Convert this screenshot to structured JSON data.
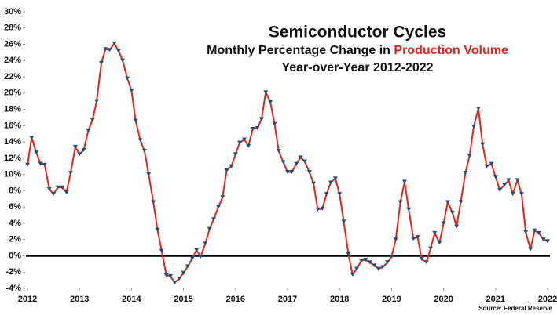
{
  "chart_data": {
    "type": "line",
    "title": "Semiconductor Cycles",
    "subtitle": {
      "text": "Monthly Percentage Change in",
      "highlight": "Production Volume",
      "highlight_color": "#e0261c"
    },
    "subtitle2": "Year-over-Year 2012-2022",
    "source": "Source: Federal Reserve",
    "x": [
      2012,
      2012.08,
      2012.17,
      2012.25,
      2012.33,
      2012.42,
      2012.5,
      2012.58,
      2012.67,
      2012.75,
      2012.83,
      2012.92,
      2013,
      2013.08,
      2013.17,
      2013.25,
      2013.33,
      2013.42,
      2013.5,
      2013.58,
      2013.67,
      2013.75,
      2013.83,
      2013.92,
      2014,
      2014.08,
      2014.17,
      2014.25,
      2014.33,
      2014.42,
      2014.5,
      2014.58,
      2014.67,
      2014.75,
      2014.83,
      2014.92,
      2015,
      2015.08,
      2015.17,
      2015.25,
      2015.33,
      2015.42,
      2015.5,
      2015.58,
      2015.67,
      2015.75,
      2015.83,
      2015.92,
      2016,
      2016.08,
      2016.17,
      2016.25,
      2016.33,
      2016.42,
      2016.5,
      2016.58,
      2016.67,
      2016.75,
      2016.83,
      2016.92,
      2017,
      2017.08,
      2017.17,
      2017.25,
      2017.33,
      2017.42,
      2017.5,
      2017.58,
      2017.67,
      2017.75,
      2017.83,
      2017.92,
      2018,
      2018.08,
      2018.17,
      2018.25,
      2018.33,
      2018.42,
      2018.5,
      2018.58,
      2018.67,
      2018.75,
      2018.83,
      2018.92,
      2019,
      2019.08,
      2019.17,
      2019.25,
      2019.33,
      2019.42,
      2019.5,
      2019.58,
      2019.67,
      2019.75,
      2019.83,
      2019.92,
      2020,
      2020.08,
      2020.17,
      2020.25,
      2020.33,
      2020.42,
      2020.5,
      2020.58,
      2020.67,
      2020.75,
      2020.83,
      2020.92,
      2021,
      2021.08,
      2021.17,
      2021.25,
      2021.33,
      2021.42,
      2021.5,
      2021.58,
      2021.67,
      2021.75,
      2021.83,
      2021.92,
      2022
    ],
    "series": [
      {
        "name": "Production Volume",
        "color": "#e0261c",
        "marker_color": "#1f4e79",
        "values": [
          11.2,
          14.5,
          12.7,
          11.3,
          11.2,
          8.2,
          7.6,
          8.4,
          8.4,
          7.8,
          10.2,
          13.4,
          12.5,
          13.0,
          15.4,
          16.7,
          19.0,
          23.7,
          25.4,
          25.3,
          26.1,
          25.2,
          24.0,
          21.8,
          20.3,
          16.6,
          14.2,
          12.9,
          10.0,
          6.6,
          3.2,
          0.6,
          -2.4,
          -2.5,
          -3.3,
          -2.8,
          -2.1,
          -1.3,
          -0.3,
          0.7,
          -0.1,
          1.5,
          3.3,
          4.5,
          6.0,
          7.2,
          10.5,
          11.0,
          12.5,
          13.9,
          14.3,
          13.5,
          15.6,
          15.7,
          16.8,
          20.1,
          18.9,
          16.2,
          12.9,
          11.5,
          10.3,
          10.3,
          11.3,
          12.1,
          11.6,
          10.3,
          8.9,
          5.7,
          5.8,
          7.6,
          9.0,
          9.5,
          7.6,
          4.2,
          0.2,
          -2.3,
          -1.6,
          -0.6,
          -0.5,
          -0.8,
          -1.2,
          -1.6,
          -1.4,
          -0.8,
          -0.1,
          2.0,
          6.6,
          9.1,
          5.7,
          2.1,
          2.3,
          -0.4,
          -0.8,
          0.9,
          2.8,
          1.6,
          4.0,
          6.6,
          5.3,
          3.6,
          6.6,
          10.2,
          12.3,
          15.9,
          18.1,
          13.7,
          11.0,
          11.3,
          9.7,
          8.1,
          8.7,
          9.3,
          7.6,
          9.3,
          7.6,
          2.9,
          0.8,
          3.1,
          2.8,
          2.0,
          1.8
        ]
      }
    ],
    "xlim": [
      2012,
      2022
    ],
    "xticks": [
      2012,
      2013,
      2014,
      2015,
      2016,
      2017,
      2018,
      2019,
      2020,
      2021,
      2022
    ],
    "ylim": [
      -4,
      30
    ],
    "yticks": [
      {
        "value": -4,
        "label": "-4%"
      },
      {
        "value": -2,
        "label": "-2%"
      },
      {
        "value": 0,
        "label": "0%"
      },
      {
        "value": 2,
        "label": "2%"
      },
      {
        "value": 4,
        "label": "4%"
      },
      {
        "value": 6,
        "label": "6%"
      },
      {
        "value": 8,
        "label": "8%"
      },
      {
        "value": 10,
        "label": "10%"
      },
      {
        "value": 12,
        "label": "12%"
      },
      {
        "value": 14,
        "label": "14%"
      },
      {
        "value": 16,
        "label": "16%"
      },
      {
        "value": 18,
        "label": "18%"
      },
      {
        "value": 20,
        "label": "20%"
      },
      {
        "value": 22,
        "label": "22%"
      },
      {
        "value": 24,
        "label": "24%"
      },
      {
        "value": 26,
        "label": "26%"
      },
      {
        "value": 28,
        "label": "28%"
      },
      {
        "value": 30,
        "label": "30%"
      }
    ],
    "reference_line": 0,
    "reference_color": "#000000",
    "grid": false
  }
}
